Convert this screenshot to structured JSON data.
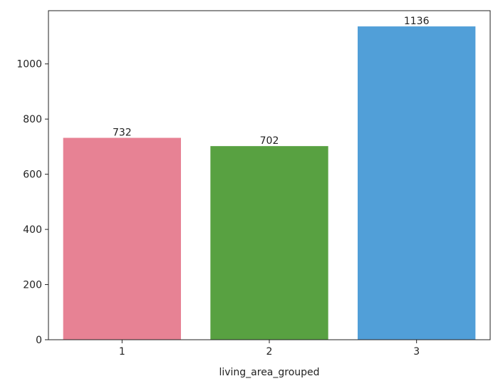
{
  "chart_data": {
    "type": "bar",
    "categories": [
      "1",
      "2",
      "3"
    ],
    "values": [
      732,
      702,
      1136
    ],
    "data_labels": [
      "732",
      "702",
      "1136"
    ],
    "colors": [
      "#e78294",
      "#58a141",
      "#519fd8"
    ],
    "title": "",
    "xlabel": "living_area_grouped",
    "ylabel": "",
    "ylim": [
      0,
      1193
    ],
    "yticks": [
      0,
      200,
      400,
      600,
      800,
      1000
    ],
    "grid": false,
    "legend": "none"
  }
}
